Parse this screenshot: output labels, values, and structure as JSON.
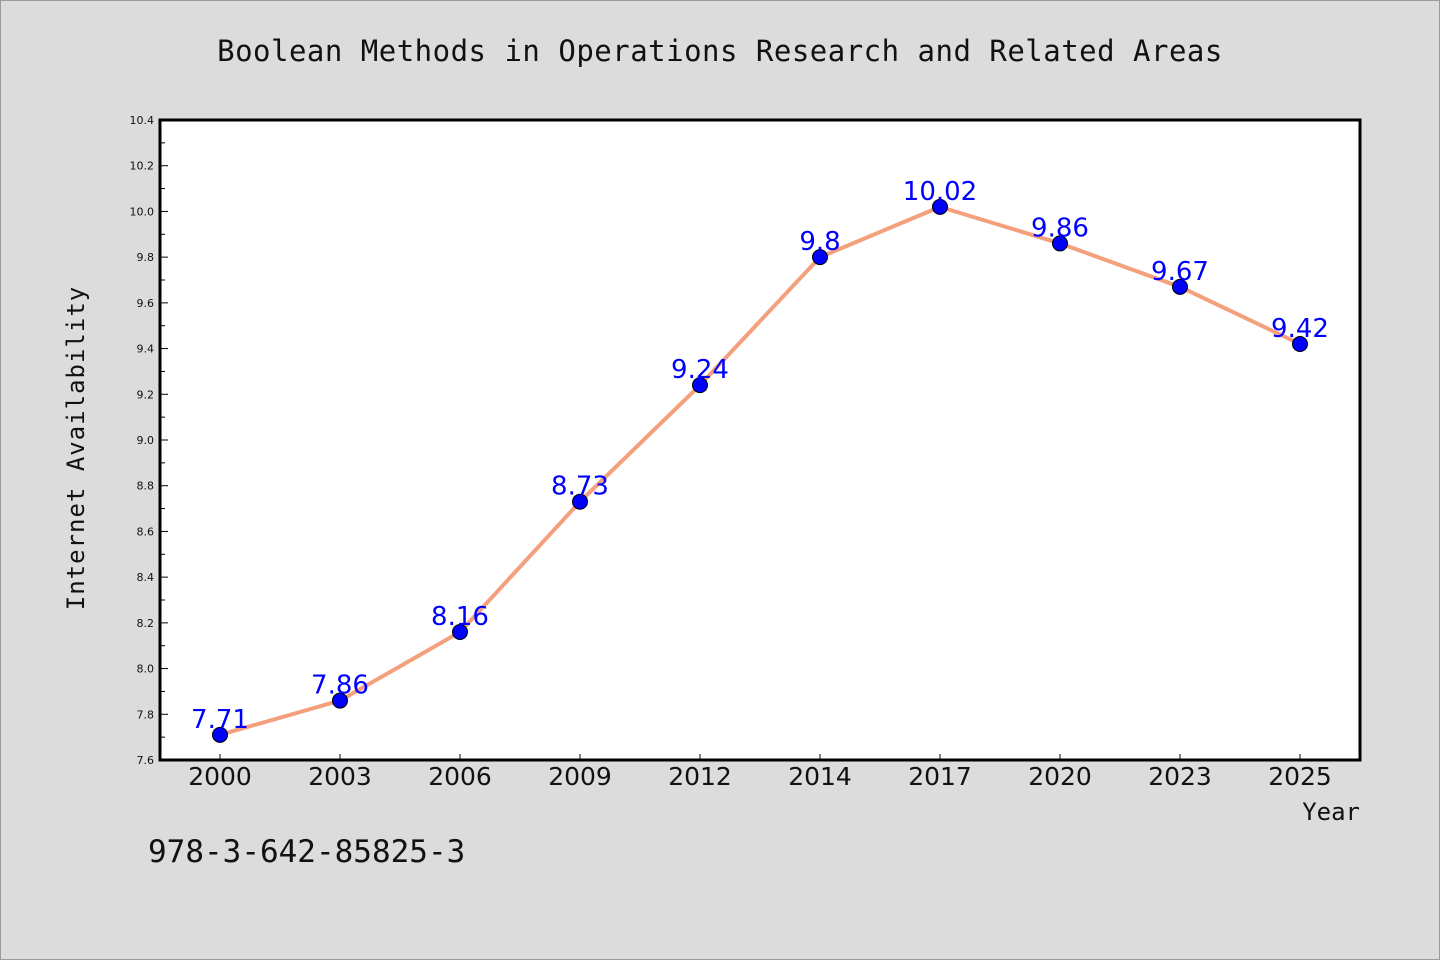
{
  "chart_data": {
    "type": "line",
    "title": "Boolean Methods in Operations Research and Related Areas",
    "xlabel": "Year",
    "ylabel": "Internet Availability",
    "categories": [
      "2000",
      "2003",
      "2006",
      "2009",
      "2012",
      "2014",
      "2017",
      "2020",
      "2023",
      "2025"
    ],
    "series": [
      {
        "values": [
          7.71,
          7.86,
          8.16,
          8.73,
          9.24,
          9.8,
          10.02,
          9.86,
          9.67,
          9.42
        ],
        "labels": [
          "7.71",
          "7.86",
          "8.16",
          "8.73",
          "9.24",
          "9.8",
          "10.02",
          "9.86",
          "9.67",
          "9.42"
        ],
        "line_color": "#f4a07c",
        "marker_color": "#0000ff"
      }
    ],
    "ylim": [
      7.6,
      10.4
    ],
    "y_ticks": [
      "7.6",
      "7.8",
      "8.0",
      "8.2",
      "8.4",
      "8.6",
      "8.8",
      "9.0",
      "9.2",
      "9.4",
      "9.6",
      "9.8",
      "10.0",
      "10.2",
      "10.4"
    ],
    "grid": false,
    "legend": "none"
  },
  "annotation": {
    "isbn": "978-3-642-85825-3"
  },
  "colors": {
    "background": "#dcdcdc",
    "plot_background": "#ffffff",
    "label_color": "#0000ff"
  }
}
